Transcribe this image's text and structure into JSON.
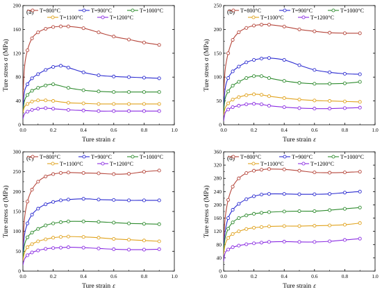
{
  "colors": {
    "T800": "#b5453a",
    "T900": "#2a2ad0",
    "T1000": "#2e8b2e",
    "T1100": "#e0a21c",
    "T1200": "#8a2be2",
    "axis": "#000000"
  },
  "chart_data": [
    {
      "type": "line",
      "panel_label": "(a)",
      "xlabel_text": "Ture strain",
      "xlabel_symbol": "ε",
      "ylabel": "Ture stress σ (MPa)",
      "xlim": [
        0.0,
        1.0
      ],
      "ylim": [
        0,
        200
      ],
      "xticks": [
        "0.0",
        "0.2",
        "0.4",
        "0.6",
        "0.8",
        "1.0"
      ],
      "yticks": [
        "0",
        "40",
        "80",
        "120",
        "160",
        "200"
      ],
      "legend_placement": "top",
      "series": [
        {
          "name": "T=800°C",
          "color_key": "T800",
          "x": [
            0,
            0.01,
            0.03,
            0.06,
            0.1,
            0.15,
            0.2,
            0.25,
            0.3,
            0.4,
            0.5,
            0.6,
            0.7,
            0.8,
            0.9
          ],
          "y": [
            40,
            95,
            125,
            145,
            155,
            161,
            164,
            165,
            165,
            162,
            155,
            148,
            143,
            138,
            134
          ]
        },
        {
          "name": "T=900°C",
          "color_key": "T900",
          "x": [
            0,
            0.01,
            0.03,
            0.06,
            0.1,
            0.15,
            0.2,
            0.25,
            0.3,
            0.4,
            0.5,
            0.6,
            0.7,
            0.8,
            0.9
          ],
          "y": [
            25,
            55,
            68,
            78,
            85,
            92,
            97,
            99,
            96,
            88,
            83,
            81,
            80,
            79,
            78
          ]
        },
        {
          "name": "T=1000°C",
          "color_key": "T1000",
          "x": [
            0,
            0.01,
            0.03,
            0.06,
            0.1,
            0.15,
            0.2,
            0.3,
            0.4,
            0.5,
            0.6,
            0.7,
            0.8,
            0.9
          ],
          "y": [
            20,
            40,
            50,
            57,
            62,
            66,
            68,
            62,
            58,
            56,
            55,
            55,
            55,
            55
          ]
        },
        {
          "name": "T=1100°C",
          "color_key": "T1100",
          "x": [
            0,
            0.01,
            0.03,
            0.06,
            0.1,
            0.15,
            0.2,
            0.3,
            0.4,
            0.5,
            0.6,
            0.7,
            0.8,
            0.9
          ],
          "y": [
            20,
            30,
            35,
            39,
            41,
            41,
            40,
            37,
            36,
            35,
            35,
            35,
            35,
            35
          ]
        },
        {
          "name": "T=1200°C",
          "color_key": "T1200",
          "x": [
            0,
            0.01,
            0.03,
            0.06,
            0.1,
            0.15,
            0.2,
            0.3,
            0.4,
            0.5,
            0.6,
            0.7,
            0.8,
            0.9
          ],
          "y": [
            10,
            18,
            22,
            25,
            27,
            28,
            27,
            25,
            24,
            23,
            23,
            23,
            23,
            23
          ]
        }
      ]
    },
    {
      "type": "line",
      "panel_label": "(b)",
      "xlabel_text": "Ture strain",
      "xlabel_symbol": "ε",
      "ylabel": "Ture stress σ (MPa)",
      "xlim": [
        0.0,
        1.0
      ],
      "ylim": [
        0,
        250
      ],
      "xticks": [
        "0.0",
        "0.2",
        "0.4",
        "0.6",
        "0.8",
        "1.0"
      ],
      "yticks": [
        "0",
        "50",
        "100",
        "150",
        "200",
        "250"
      ],
      "legend_placement": "top",
      "series": [
        {
          "name": "T=800°C",
          "color_key": "T800",
          "x": [
            0,
            0.01,
            0.03,
            0.06,
            0.1,
            0.15,
            0.2,
            0.25,
            0.3,
            0.4,
            0.5,
            0.6,
            0.7,
            0.8,
            0.9
          ],
          "y": [
            60,
            115,
            150,
            178,
            194,
            203,
            208,
            210,
            210,
            206,
            200,
            196,
            193,
            192,
            192
          ]
        },
        {
          "name": "T=900°C",
          "color_key": "T900",
          "x": [
            0,
            0.01,
            0.03,
            0.06,
            0.1,
            0.15,
            0.2,
            0.25,
            0.3,
            0.4,
            0.5,
            0.6,
            0.7,
            0.8,
            0.9
          ],
          "y": [
            30,
            75,
            98,
            112,
            122,
            131,
            136,
            139,
            140,
            136,
            125,
            115,
            110,
            107,
            106
          ]
        },
        {
          "name": "T=1000°C",
          "color_key": "T1000",
          "x": [
            0,
            0.01,
            0.03,
            0.06,
            0.1,
            0.15,
            0.2,
            0.25,
            0.3,
            0.4,
            0.5,
            0.6,
            0.7,
            0.8,
            0.9
          ],
          "y": [
            25,
            55,
            70,
            82,
            90,
            98,
            102,
            102,
            98,
            92,
            88,
            86,
            86,
            87,
            90
          ]
        },
        {
          "name": "T=1100°C",
          "color_key": "T1100",
          "x": [
            0,
            0.01,
            0.03,
            0.06,
            0.1,
            0.15,
            0.2,
            0.25,
            0.3,
            0.4,
            0.5,
            0.6,
            0.7,
            0.8,
            0.9
          ],
          "y": [
            20,
            35,
            45,
            53,
            58,
            62,
            64,
            63,
            60,
            56,
            53,
            51,
            50,
            49,
            48
          ]
        },
        {
          "name": "T=1200°C",
          "color_key": "T1200",
          "x": [
            0,
            0.01,
            0.03,
            0.06,
            0.1,
            0.15,
            0.2,
            0.25,
            0.3,
            0.4,
            0.5,
            0.6,
            0.7,
            0.8,
            0.9
          ],
          "y": [
            8,
            25,
            32,
            37,
            40,
            43,
            44,
            43,
            40,
            37,
            35,
            34,
            34,
            35,
            36
          ]
        }
      ]
    },
    {
      "type": "line",
      "panel_label": "(c)",
      "xlabel_text": "Ture strain",
      "xlabel_symbol": "ε",
      "ylabel": "Ture stress σ (MPa)",
      "xlim": [
        0.0,
        1.0
      ],
      "ylim": [
        0,
        300
      ],
      "xticks": [
        "0.0",
        "0.2",
        "0.4",
        "0.6",
        "0.8",
        "1.0"
      ],
      "yticks": [
        "0",
        "50",
        "100",
        "150",
        "200",
        "250",
        "300"
      ],
      "legend_placement": "top",
      "series": [
        {
          "name": "T=800°C",
          "color_key": "T800",
          "x": [
            0,
            0.01,
            0.03,
            0.06,
            0.1,
            0.15,
            0.2,
            0.25,
            0.3,
            0.4,
            0.5,
            0.6,
            0.7,
            0.8,
            0.9
          ],
          "y": [
            60,
            130,
            175,
            205,
            225,
            238,
            244,
            247,
            248,
            247,
            246,
            244,
            245,
            250,
            253
          ]
        },
        {
          "name": "T=900°C",
          "color_key": "T900",
          "x": [
            0,
            0.01,
            0.03,
            0.06,
            0.1,
            0.15,
            0.2,
            0.25,
            0.3,
            0.4,
            0.5,
            0.6,
            0.7,
            0.8,
            0.9
          ],
          "y": [
            40,
            90,
            120,
            142,
            157,
            168,
            174,
            178,
            180,
            182,
            180,
            179,
            178,
            178,
            178
          ]
        },
        {
          "name": "T=1000°C",
          "color_key": "T1000",
          "x": [
            0,
            0.01,
            0.03,
            0.06,
            0.1,
            0.15,
            0.2,
            0.25,
            0.3,
            0.4,
            0.5,
            0.6,
            0.7,
            0.8,
            0.9
          ],
          "y": [
            30,
            65,
            85,
            97,
            106,
            115,
            120,
            123,
            125,
            125,
            124,
            122,
            120,
            119,
            118
          ]
        },
        {
          "name": "T=1100°C",
          "color_key": "T1100",
          "x": [
            0,
            0.01,
            0.03,
            0.06,
            0.1,
            0.15,
            0.2,
            0.25,
            0.3,
            0.4,
            0.5,
            0.6,
            0.7,
            0.8,
            0.9
          ],
          "y": [
            25,
            45,
            60,
            68,
            75,
            80,
            84,
            86,
            87,
            86,
            84,
            81,
            79,
            77,
            75
          ]
        },
        {
          "name": "T=1200°C",
          "color_key": "T1200",
          "x": [
            0,
            0.01,
            0.03,
            0.06,
            0.1,
            0.15,
            0.2,
            0.25,
            0.3,
            0.4,
            0.5,
            0.6,
            0.7,
            0.8,
            0.9
          ],
          "y": [
            15,
            30,
            40,
            47,
            52,
            56,
            58,
            59,
            60,
            59,
            57,
            55,
            54,
            54,
            55
          ]
        }
      ]
    },
    {
      "type": "line",
      "panel_label": "(d)",
      "xlabel_text": "Ture strain",
      "xlabel_symbol": "ε",
      "ylabel": "Ture stress σ (MPa)",
      "xlim": [
        0.0,
        1.0
      ],
      "ylim": [
        0,
        360
      ],
      "xticks": [
        "0.0",
        "0.2",
        "0.4",
        "0.6",
        "0.8",
        "1.0"
      ],
      "yticks": [
        "0",
        "40",
        "80",
        "120",
        "160",
        "200",
        "240",
        "280",
        "320",
        "360"
      ],
      "legend_placement": "top",
      "series": [
        {
          "name": "T=800°C",
          "color_key": "T800",
          "x": [
            0,
            0.01,
            0.03,
            0.06,
            0.1,
            0.15,
            0.2,
            0.25,
            0.3,
            0.4,
            0.5,
            0.6,
            0.7,
            0.8,
            0.9
          ],
          "y": [
            90,
            160,
            215,
            255,
            280,
            296,
            303,
            306,
            308,
            307,
            303,
            298,
            297,
            298,
            300
          ]
        },
        {
          "name": "T=900°C",
          "color_key": "T900",
          "x": [
            0,
            0.01,
            0.03,
            0.06,
            0.1,
            0.15,
            0.2,
            0.25,
            0.3,
            0.4,
            0.5,
            0.6,
            0.7,
            0.8,
            0.9
          ],
          "y": [
            70,
            120,
            160,
            185,
            203,
            217,
            226,
            231,
            233,
            233,
            232,
            232,
            233,
            237,
            240
          ]
        },
        {
          "name": "T=1000°C",
          "color_key": "T1000",
          "x": [
            0,
            0.01,
            0.03,
            0.06,
            0.1,
            0.15,
            0.2,
            0.25,
            0.3,
            0.4,
            0.5,
            0.6,
            0.7,
            0.8,
            0.9
          ],
          "y": [
            60,
            100,
            128,
            147,
            160,
            168,
            173,
            176,
            178,
            180,
            181,
            181,
            184,
            188,
            192
          ]
        },
        {
          "name": "T=1100°C",
          "color_key": "T1100",
          "x": [
            0,
            0.01,
            0.03,
            0.06,
            0.1,
            0.15,
            0.2,
            0.25,
            0.3,
            0.4,
            0.5,
            0.6,
            0.7,
            0.8,
            0.9
          ],
          "y": [
            50,
            80,
            100,
            112,
            120,
            127,
            131,
            133,
            135,
            136,
            136,
            137,
            138,
            140,
            145
          ]
        },
        {
          "name": "T=1200°C",
          "color_key": "T1200",
          "x": [
            0,
            0.01,
            0.03,
            0.06,
            0.1,
            0.15,
            0.2,
            0.25,
            0.3,
            0.4,
            0.5,
            0.6,
            0.7,
            0.8,
            0.9
          ],
          "y": [
            30,
            55,
            65,
            72,
            77,
            81,
            84,
            86,
            88,
            89,
            88,
            88,
            90,
            94,
            98
          ]
        }
      ]
    }
  ]
}
